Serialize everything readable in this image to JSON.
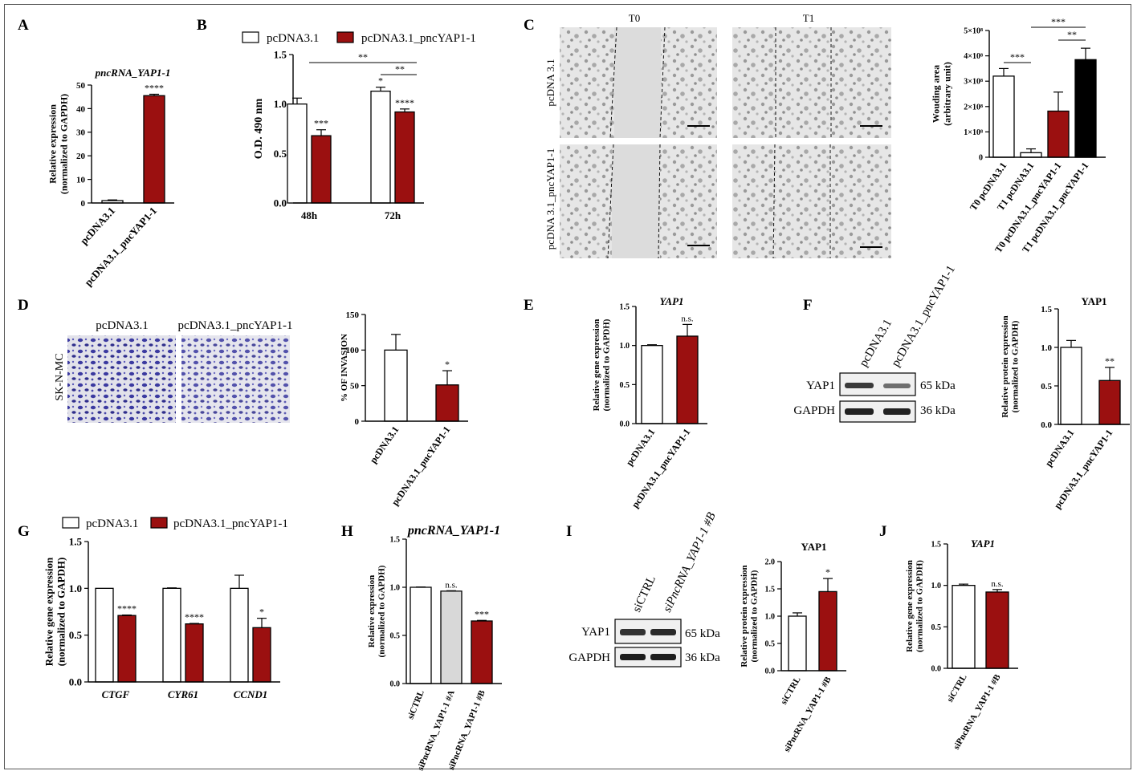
{
  "colors": {
    "red": "#9b1010",
    "white": "#ffffff",
    "gray": "#d8d8d8",
    "black": "#000000",
    "axis": "#000000",
    "blot": "#2a2a2a",
    "stain": "#3b3aa0"
  },
  "panels": {
    "A": "A",
    "B": "B",
    "C": "C",
    "D": "D",
    "E": "E",
    "F": "F",
    "G": "G",
    "H": "H",
    "I": "I",
    "J": "J"
  },
  "legend": {
    "control": "pcDNA3.1",
    "treated": "pcDNA3.1_pncYAP1-1"
  },
  "microscopy": {
    "wound": {
      "t0": "T0",
      "t1": "T1",
      "row1": "pcDNA 3.1",
      "row2": "pcDNA 3.1_pncYAP1-1"
    },
    "invasion": {
      "col1": "pcDNA3.1",
      "col2": "pcDNA3.1_pncYAP1-1",
      "row": "SK-N-MC"
    }
  },
  "blots": {
    "F": {
      "lane1": "pcDNA3.1",
      "lane2": "pcDNA3.1_pncYAP1-1",
      "band1": "YAP1",
      "band2": "GAPDH",
      "size1": "65 kDa",
      "size2": "36 kDa"
    },
    "I": {
      "lane1": "siCTRL",
      "lane2": "siPncRNA_YAP1-1 #B",
      "band1": "YAP1",
      "band2": "GAPDH",
      "size1": "65 kDa",
      "size2": "36 kDa"
    }
  },
  "chart_data": [
    {
      "id": "A",
      "type": "bar",
      "title": "pncRNA_YAP1-1",
      "ylabel": [
        "Relative expression",
        "(normalized to GAPDH)"
      ],
      "ylim": [
        0,
        50
      ],
      "yticks": [
        "0",
        "10",
        "20",
        "30",
        "40",
        "50"
      ],
      "categories": [
        "pcDNA3.1",
        "pcDNA3.1_pncYAP1-1"
      ],
      "values": [
        1,
        45.5
      ],
      "errors": [
        0.3,
        0.6
      ],
      "colors": [
        "#ffffff",
        "#9b1010"
      ],
      "annotations": [
        "",
        "****"
      ]
    },
    {
      "id": "B",
      "type": "bar",
      "title": "",
      "ylabel": [
        "O.D. 490 nm"
      ],
      "ylim": [
        0,
        1.5
      ],
      "yticks": [
        "0.0",
        "0.5",
        "1.0",
        "1.5"
      ],
      "categories": [
        "48h",
        "72h"
      ],
      "series": [
        {
          "name": "pcDNA3.1",
          "values": [
            1.0,
            1.13
          ],
          "errors": [
            0.06,
            0.04
          ],
          "annotations": [
            "",
            "*"
          ]
        },
        {
          "name": "pcDNA3.1_pncYAP1-1",
          "values": [
            0.68,
            0.92
          ],
          "errors": [
            0.06,
            0.03
          ],
          "annotations": [
            "***",
            "****"
          ]
        }
      ],
      "brackets": [
        "**",
        "**"
      ]
    },
    {
      "id": "C",
      "type": "bar",
      "title": "",
      "ylabel": [
        "Wouding area",
        "(arbitrary unit)"
      ],
      "ylim": [
        0,
        500000000
      ],
      "yticks": [
        "0",
        "1×10⁸",
        "2×10⁸",
        "3×10⁸",
        "4×10⁸",
        "5×10⁸"
      ],
      "categories": [
        "T0 pcDNA3.1",
        "T1 pcDNA3.1",
        "T0 pcDNA3.1_pncYAP1-1",
        "T1 pcDNA3.1_pncYAP1-1"
      ],
      "values": [
        320000000,
        18000000,
        182000000,
        385000000
      ],
      "errors": [
        30000000,
        15000000,
        75000000,
        45000000
      ],
      "colors": [
        "#ffffff",
        "#ffffff",
        "#9b1010",
        "#000000"
      ],
      "brackets": [
        "***",
        "***",
        "**"
      ]
    },
    {
      "id": "D",
      "type": "bar",
      "title": "",
      "ylabel": [
        "% OF INVASION"
      ],
      "ylim": [
        0,
        150
      ],
      "yticks": [
        "0",
        "50",
        "100",
        "150"
      ],
      "categories": [
        "pcDNA3.1",
        "pcDNA3.1_pncYAP1-1"
      ],
      "values": [
        100,
        51
      ],
      "errors": [
        22,
        20
      ],
      "colors": [
        "#ffffff",
        "#9b1010"
      ],
      "annotations": [
        "",
        "*"
      ]
    },
    {
      "id": "E",
      "type": "bar",
      "title": "YAP1",
      "ylabel": [
        "Relative gene expression",
        "(normalized to GAPDH)"
      ],
      "ylim": [
        0,
        1.5
      ],
      "yticks": [
        "0.0",
        "0.5",
        "1.0",
        "1.5"
      ],
      "categories": [
        "pcDNA3.1",
        "pcDNA3.1_pncYAP1-1"
      ],
      "values": [
        1.0,
        1.12
      ],
      "errors": [
        0.01,
        0.15
      ],
      "colors": [
        "#ffffff",
        "#9b1010"
      ],
      "annotations": [
        "",
        "n.s."
      ]
    },
    {
      "id": "F",
      "type": "bar",
      "title": "YAP1",
      "ylabel": [
        "Relative protein expression",
        "(normalized to GAPDH)"
      ],
      "ylim": [
        0,
        1.5
      ],
      "yticks": [
        "0.0",
        "0.5",
        "1.0",
        "1.5"
      ],
      "categories": [
        "pcDNA3.1",
        "pcDNA3.1_pncYAP1-1"
      ],
      "values": [
        1.0,
        0.57
      ],
      "errors": [
        0.09,
        0.17
      ],
      "colors": [
        "#ffffff",
        "#9b1010"
      ],
      "annotations": [
        "",
        "**"
      ]
    },
    {
      "id": "G",
      "type": "bar",
      "title": "",
      "ylabel": [
        "Relative gene expression",
        "(normalized to GAPDH)"
      ],
      "ylim": [
        0,
        1.5
      ],
      "yticks": [
        "0.0",
        "0.5",
        "1.0",
        "1.5"
      ],
      "categories": [
        "CTGF",
        "CYR61",
        "CCND1"
      ],
      "series": [
        {
          "name": "pcDNA3.1",
          "values": [
            1.0,
            1.0,
            1.0
          ],
          "errors": [
            0,
            0.005,
            0.14
          ],
          "annotations": [
            "",
            "",
            ""
          ]
        },
        {
          "name": "pcDNA3.1_pncYAP1-1",
          "values": [
            0.71,
            0.62,
            0.58
          ],
          "errors": [
            0.005,
            0.005,
            0.1
          ],
          "annotations": [
            "****",
            "****",
            "*"
          ]
        }
      ]
    },
    {
      "id": "H",
      "type": "bar",
      "title": "pncRNA_YAP1-1",
      "ylabel": [
        "Relative expression",
        "(normalized to GAPDH)"
      ],
      "ylim": [
        0,
        1.5
      ],
      "yticks": [
        "0.0",
        "0.5",
        "1.0",
        "1.5"
      ],
      "categories": [
        "siCTRL",
        "siPncRNA_YAP1-1 #A",
        "siPncRNA_YAP1-1 #B"
      ],
      "values": [
        1.0,
        0.96,
        0.65
      ],
      "errors": [
        0.003,
        0.004,
        0.006
      ],
      "colors": [
        "#ffffff",
        "#d8d8d8",
        "#9b1010"
      ],
      "annotations": [
        "",
        "n.s.",
        "***"
      ]
    },
    {
      "id": "I",
      "type": "bar",
      "title": "YAP1",
      "ylabel": [
        "Relative protein expression",
        "(normalized to GAPDH)"
      ],
      "ylim": [
        0,
        2.0
      ],
      "yticks": [
        "0.0",
        "0.5",
        "1.0",
        "1.5",
        "2.0"
      ],
      "categories": [
        "siCTRL",
        "siPncRNA_YAP1-1 #B"
      ],
      "values": [
        1.0,
        1.45
      ],
      "errors": [
        0.06,
        0.24
      ],
      "colors": [
        "#ffffff",
        "#9b1010"
      ],
      "annotations": [
        "",
        "*"
      ]
    },
    {
      "id": "J",
      "type": "bar",
      "title": "YAP1",
      "ylabel": [
        "Relative gene expression",
        "(normalized to GAPDH)"
      ],
      "ylim": [
        0,
        1.5
      ],
      "yticks": [
        "0.0",
        "0.5",
        "1.0",
        "1.5"
      ],
      "categories": [
        "siCTRL",
        "siPncRNA_YAP1-1 #B"
      ],
      "values": [
        1.0,
        0.92
      ],
      "errors": [
        0.015,
        0.03
      ],
      "colors": [
        "#ffffff",
        "#9b1010"
      ],
      "annotations": [
        "",
        "n.s."
      ]
    }
  ]
}
